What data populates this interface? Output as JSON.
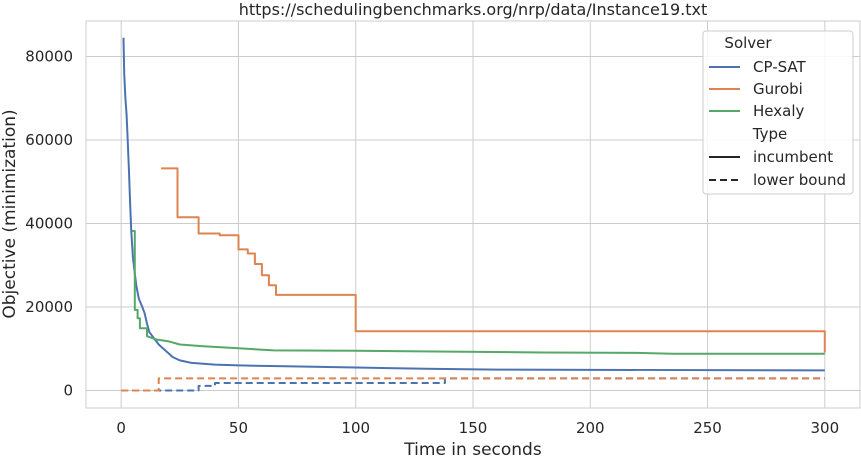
{
  "chart_data": {
    "type": "line",
    "title": "https://schedulingbenchmarks.org/nrp/data/Instance19.txt",
    "xlabel": "Time in seconds",
    "ylabel": "Objective (minimization)",
    "xlim": [
      -15,
      315
    ],
    "ylim": [
      -4200,
      88500
    ],
    "xticks": [
      0,
      50,
      100,
      150,
      200,
      250,
      300
    ],
    "yticks": [
      0,
      20000,
      40000,
      60000,
      80000
    ],
    "grid": true,
    "legend": {
      "placement": "top-right",
      "solver_header": "Solver",
      "type_header": "Type",
      "solvers": [
        {
          "name": "CP-SAT",
          "color": "#4c72b0"
        },
        {
          "name": "Gurobi",
          "color": "#dd8452"
        },
        {
          "name": "Hexaly",
          "color": "#55a868"
        }
      ],
      "types": [
        {
          "name": "incumbent",
          "dash": "solid"
        },
        {
          "name": "lower bound",
          "dash": "dashed"
        }
      ]
    },
    "series": [
      {
        "name": "CP-SAT",
        "type": "incumbent",
        "color": "#4c72b0",
        "points": [
          [
            1,
            84500
          ],
          [
            1.3,
            76000
          ],
          [
            1.8,
            70000
          ],
          [
            2.3,
            66000
          ],
          [
            2.8,
            60000
          ],
          [
            3.3,
            53000
          ],
          [
            3.8,
            45000
          ],
          [
            4.3,
            38000
          ],
          [
            5,
            32000
          ],
          [
            5.8,
            28000
          ],
          [
            6.5,
            25000
          ],
          [
            7.5,
            22000
          ],
          [
            9,
            20000
          ],
          [
            10,
            18500
          ],
          [
            11,
            16000
          ],
          [
            12,
            14000
          ],
          [
            14,
            12500
          ],
          [
            16,
            11000
          ],
          [
            18,
            10000
          ],
          [
            20,
            9000
          ],
          [
            22,
            8000
          ],
          [
            25,
            7200
          ],
          [
            30,
            6600
          ],
          [
            40,
            6200
          ],
          [
            50,
            6000
          ],
          [
            70,
            5800
          ],
          [
            100,
            5500
          ],
          [
            130,
            5200
          ],
          [
            160,
            5000
          ],
          [
            300,
            4800
          ]
        ]
      },
      {
        "name": "CP-SAT",
        "type": "lower bound",
        "color": "#4c72b0",
        "points": [
          [
            0,
            0
          ],
          [
            33,
            0
          ],
          [
            33,
            1100
          ],
          [
            40,
            1100
          ],
          [
            40,
            1800
          ],
          [
            138,
            1800
          ],
          [
            138,
            2900
          ],
          [
            300,
            2900
          ]
        ]
      },
      {
        "name": "Gurobi",
        "type": "incumbent",
        "color": "#dd8452",
        "points": [
          [
            17,
            53200
          ],
          [
            24,
            53200
          ],
          [
            24,
            41500
          ],
          [
            33,
            41500
          ],
          [
            33,
            37600
          ],
          [
            42,
            37600
          ],
          [
            42,
            37200
          ],
          [
            50,
            37200
          ],
          [
            50,
            33800
          ],
          [
            54,
            33800
          ],
          [
            54,
            32800
          ],
          [
            57,
            32800
          ],
          [
            57,
            30300
          ],
          [
            60,
            30300
          ],
          [
            60,
            27600
          ],
          [
            63,
            27600
          ],
          [
            63,
            25200
          ],
          [
            66,
            25200
          ],
          [
            66,
            22900
          ],
          [
            100,
            22900
          ],
          [
            100,
            14200
          ],
          [
            300,
            14200
          ],
          [
            300,
            9100
          ]
        ]
      },
      {
        "name": "Gurobi",
        "type": "lower bound",
        "color": "#dd8452",
        "points": [
          [
            0,
            0
          ],
          [
            16,
            0
          ],
          [
            16,
            2900
          ],
          [
            300,
            2900
          ]
        ]
      },
      {
        "name": "Hexaly",
        "type": "incumbent",
        "color": "#55a868",
        "points": [
          [
            4.5,
            38200
          ],
          [
            5.8,
            38200
          ],
          [
            5.8,
            19300
          ],
          [
            7,
            19300
          ],
          [
            7,
            17300
          ],
          [
            8,
            17300
          ],
          [
            8,
            14900
          ],
          [
            11,
            14900
          ],
          [
            11,
            13000
          ],
          [
            15,
            12200
          ],
          [
            20,
            11800
          ],
          [
            25,
            11000
          ],
          [
            35,
            10600
          ],
          [
            50,
            10100
          ],
          [
            65,
            9600
          ],
          [
            100,
            9500
          ],
          [
            140,
            9300
          ],
          [
            180,
            9100
          ],
          [
            220,
            9000
          ],
          [
            235,
            8800
          ],
          [
            300,
            8800
          ]
        ]
      }
    ]
  }
}
